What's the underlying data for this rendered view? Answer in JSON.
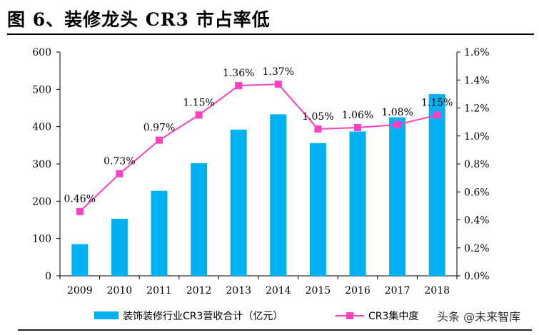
{
  "title": "图 6、装修龙头 CR3 市占率低",
  "watermark": "头条 @未来智库",
  "colors": {
    "bar": "#00b0f0",
    "line": "#ff40c0",
    "axis": "#000000"
  },
  "chart_data": {
    "type": "bar",
    "categories": [
      "2009",
      "2010",
      "2011",
      "2012",
      "2013",
      "2014",
      "2015",
      "2016",
      "2017",
      "2018"
    ],
    "series": [
      {
        "name": "装饰装修行业CR3营收合计（亿元）",
        "type": "bar",
        "axis": "left",
        "values": [
          85,
          153,
          228,
          302,
          392,
          433,
          356,
          387,
          425,
          487
        ]
      },
      {
        "name": "CR3集中度",
        "type": "line",
        "axis": "right",
        "values": [
          0.46,
          0.73,
          0.97,
          1.15,
          1.36,
          1.37,
          1.05,
          1.06,
          1.08,
          1.15
        ],
        "labels": [
          "0.46%",
          "0.73%",
          "0.97%",
          "1.15%",
          "1.36%",
          "1.37%",
          "1.05%",
          "1.06%",
          "1.08%",
          "1.15%"
        ]
      }
    ],
    "ylim_left": [
      0,
      600
    ],
    "yticks_left": [
      "0",
      "100",
      "200",
      "300",
      "400",
      "500",
      "600"
    ],
    "ylim_right": [
      0,
      1.6
    ],
    "yticks_right": [
      "0.0%",
      "0.2%",
      "0.4%",
      "0.6%",
      "0.8%",
      "1.0%",
      "1.2%",
      "1.4%",
      "1.6%"
    ],
    "grid": false,
    "legend_position": "bottom"
  }
}
